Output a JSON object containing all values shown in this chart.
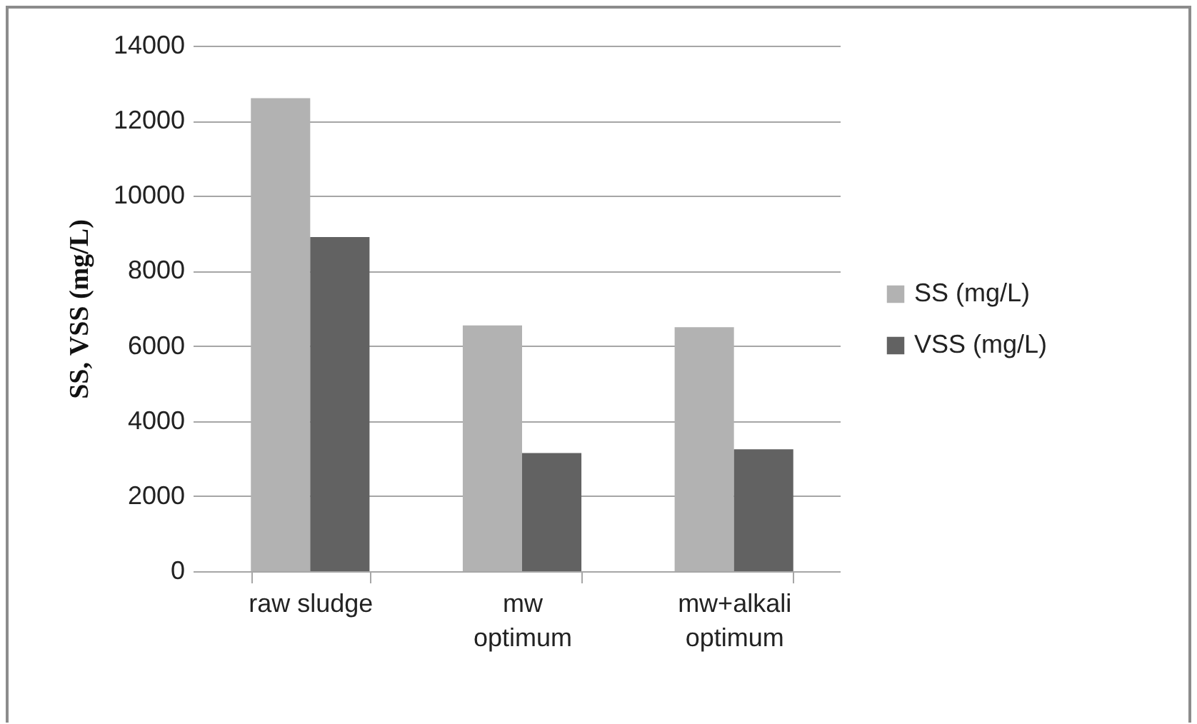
{
  "chart_data": {
    "type": "bar",
    "ylabel": "SS, VSS (mg/L)",
    "categories": [
      "raw sludge",
      "mw\noptimum",
      "mw+alkali\noptimum"
    ],
    "series": [
      {
        "name": "SS (mg/L)",
        "color": "#b2b2b2",
        "values": [
          12600,
          6550,
          6500
        ]
      },
      {
        "name": "VSS (mg/L)",
        "color": "#626262",
        "values": [
          8900,
          3150,
          3250
        ]
      }
    ],
    "ylim": [
      0,
      14000
    ],
    "yticks": [
      0,
      2000,
      4000,
      6000,
      8000,
      10000,
      12000,
      14000
    ],
    "grid": "y",
    "legend": "right"
  }
}
